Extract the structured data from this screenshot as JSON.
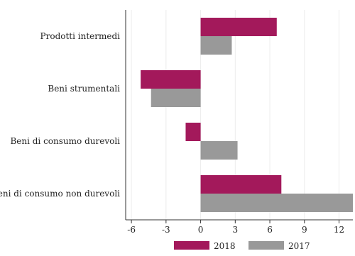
{
  "chart_data": {
    "type": "bar",
    "orientation": "horizontal",
    "title": "",
    "xlabel": "",
    "ylabel": "",
    "categories": [
      "Prodotti intermedi",
      "Beni strumentali",
      "Beni di consumo durevoli",
      "Beni di consumo non durevoli"
    ],
    "series": [
      {
        "name": "2018",
        "color": "#a3195b",
        "values": [
          6.6,
          -5.2,
          -1.3,
          7.0
        ]
      },
      {
        "name": "2017",
        "color": "#999999",
        "values": [
          2.7,
          -4.3,
          3.2,
          13.2
        ]
      }
    ],
    "xlim": [
      -6.5,
      13.2
    ],
    "xticks": [
      -6,
      -3,
      0,
      3,
      6,
      9,
      12
    ],
    "xtick_labels": [
      "-6",
      "-3",
      "0",
      "3",
      "6",
      "9",
      "12"
    ],
    "grid": true,
    "legend_position": "bottom"
  }
}
